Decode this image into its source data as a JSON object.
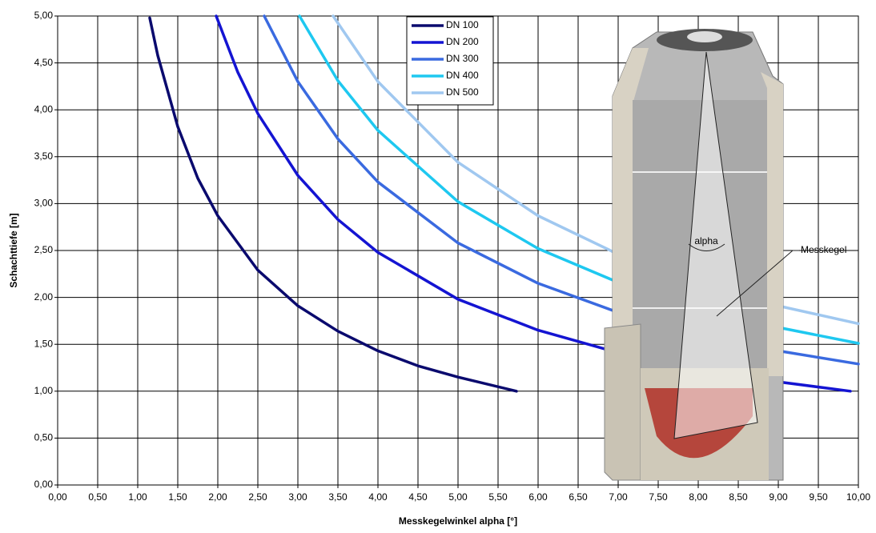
{
  "chart_data": {
    "type": "line",
    "x_label": "Messkegelwinkel alpha [°]",
    "y_label": "Schachttiefe [m]",
    "annotations": [
      "alpha",
      "Messkegel"
    ],
    "grid": true,
    "legend": "top",
    "xlim": [
      0,
      10
    ],
    "ylim": [
      0,
      5
    ],
    "xticks": [
      {
        "value": 0,
        "label": "0,00"
      },
      {
        "value": 0.5,
        "label": "0,50"
      },
      {
        "value": 1,
        "label": "1,00"
      },
      {
        "value": 1.5,
        "label": "1,50"
      },
      {
        "value": 2,
        "label": "2,00"
      },
      {
        "value": 2.5,
        "label": "2,50"
      },
      {
        "value": 3,
        "label": "3,00"
      },
      {
        "value": 3.5,
        "label": "3,50"
      },
      {
        "value": 4,
        "label": "4,00"
      },
      {
        "value": 4.5,
        "label": "4,50"
      },
      {
        "value": 5,
        "label": "5,00"
      },
      {
        "value": 5.5,
        "label": "5,50"
      },
      {
        "value": 6,
        "label": "6,00"
      },
      {
        "value": 6.5,
        "label": "6,50"
      },
      {
        "value": 7,
        "label": "7,00"
      },
      {
        "value": 7.5,
        "label": "7,50"
      },
      {
        "value": 8,
        "label": "8,00"
      },
      {
        "value": 8.5,
        "label": "8,50"
      },
      {
        "value": 9,
        "label": "9,00"
      },
      {
        "value": 9.5,
        "label": "9,50"
      },
      {
        "value": 10,
        "label": "10,00"
      }
    ],
    "yticks": [
      {
        "value": 0,
        "label": "0,00"
      },
      {
        "value": 0.5,
        "label": "0,50"
      },
      {
        "value": 1,
        "label": "1,00"
      },
      {
        "value": 1.5,
        "label": "1,50"
      },
      {
        "value": 2,
        "label": "2,00"
      },
      {
        "value": 2.5,
        "label": "2,50"
      },
      {
        "value": 3,
        "label": "3,00"
      },
      {
        "value": 3.5,
        "label": "3,50"
      },
      {
        "value": 4,
        "label": "4,00"
      },
      {
        "value": 4.5,
        "label": "4,50"
      },
      {
        "value": 5,
        "label": "5,00"
      }
    ],
    "series": [
      {
        "name": "DN 100",
        "color": "#0a0a6e",
        "x": [
          1.15,
          1.25,
          1.5,
          1.75,
          2,
          2.5,
          3,
          3.5,
          4,
          4.5,
          5,
          5.73
        ],
        "values": [
          4.98,
          4.58,
          3.82,
          3.27,
          2.87,
          2.29,
          1.91,
          1.64,
          1.43,
          1.27,
          1.15,
          1.0
        ]
      },
      {
        "name": "DN 200",
        "color": "#1414d2",
        "x": [
          1.98,
          2.25,
          2.5,
          3,
          3.5,
          4,
          5,
          6,
          7,
          8,
          9,
          9.9
        ],
        "values": [
          5.0,
          4.4,
          3.96,
          3.3,
          2.83,
          2.48,
          1.98,
          1.65,
          1.41,
          1.24,
          1.1,
          1.0
        ]
      },
      {
        "name": "DN 300",
        "color": "#3a6ae0",
        "x": [
          2.58,
          3,
          3.5,
          4,
          5,
          6,
          7,
          8,
          9,
          10
        ],
        "values": [
          5.0,
          4.3,
          3.69,
          3.23,
          2.58,
          2.15,
          1.84,
          1.61,
          1.43,
          1.29
        ]
      },
      {
        "name": "DN 400",
        "color": "#1ec8f0",
        "x": [
          3.02,
          3.5,
          4,
          5,
          6,
          7,
          8,
          9,
          10
        ],
        "values": [
          5.0,
          4.31,
          3.78,
          3.02,
          2.52,
          2.16,
          1.89,
          1.68,
          1.51
        ]
      },
      {
        "name": "DN 500",
        "color": "#a0c8f0",
        "x": [
          3.44,
          4,
          5,
          6,
          7,
          8,
          9,
          10
        ],
        "values": [
          5.0,
          4.3,
          3.44,
          2.87,
          2.46,
          2.15,
          1.91,
          1.72
        ]
      }
    ]
  }
}
